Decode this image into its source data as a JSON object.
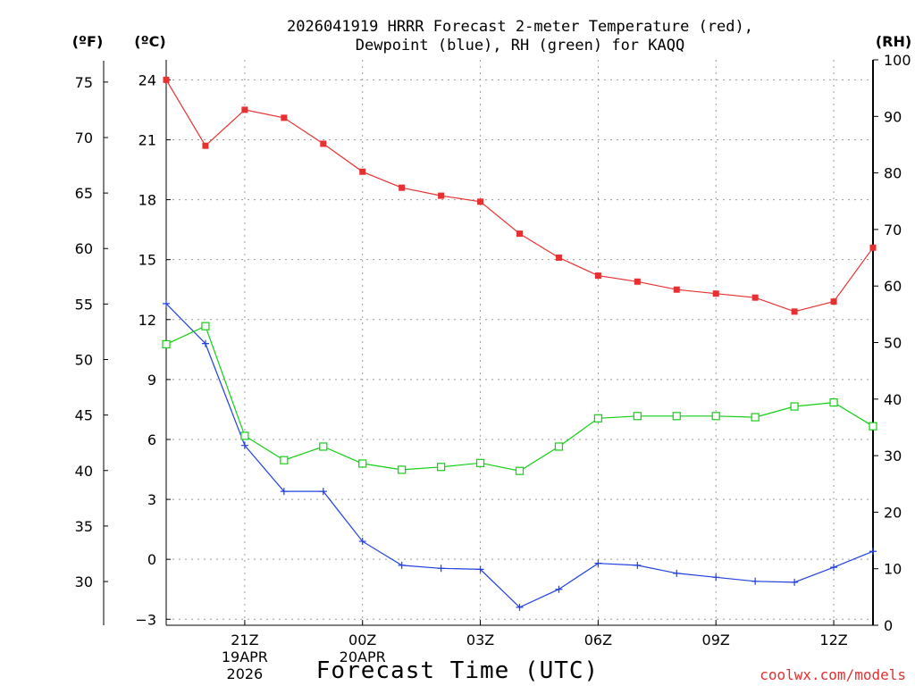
{
  "title_line1": "2026041919 HRRR Forecast 2-meter Temperature (red),",
  "title_line2": "Dewpoint (blue), RH (green) for KAQQ",
  "unit_f": "(ºF)",
  "unit_c": "(ºC)",
  "unit_rh": "(RH)",
  "xlabel": "Forecast Time (UTC)",
  "credit": "coolwx.com/models",
  "colors": {
    "temperature": "#e83030",
    "dewpoint": "#2040e0",
    "rh": "#10d010"
  },
  "chart_data": {
    "type": "line",
    "title": "2026041919 HRRR Forecast 2-meter Temperature (red), Dewpoint (blue), RH (green) for KAQQ",
    "xlabel": "Forecast Time (UTC)",
    "x_hours": [
      0,
      1,
      2,
      3,
      4,
      5,
      6,
      7,
      8,
      9,
      10,
      11,
      12,
      13,
      14,
      15,
      16,
      17,
      18
    ],
    "xlim": [
      0,
      18
    ],
    "x_ticks": [
      {
        "hour": 2,
        "label": "21Z",
        "sub1": "19APR",
        "sub2": "2026"
      },
      {
        "hour": 5,
        "label": "00Z",
        "sub1": "20APR",
        "sub2": ""
      },
      {
        "hour": 8,
        "label": "03Z",
        "sub1": "",
        "sub2": ""
      },
      {
        "hour": 11,
        "label": "06Z",
        "sub1": "",
        "sub2": ""
      },
      {
        "hour": 14,
        "label": "09Z",
        "sub1": "",
        "sub2": ""
      },
      {
        "hour": 17,
        "label": "12Z",
        "sub1": "",
        "sub2": ""
      }
    ],
    "axes": {
      "celsius": {
        "lim": [
          -3.3,
          25
        ],
        "ticks": [
          -3,
          0,
          3,
          6,
          9,
          12,
          15,
          18,
          21,
          24
        ],
        "tick_labels": [
          "−3",
          "0",
          "3",
          "6",
          "9",
          "12",
          "15",
          "18",
          "21",
          "24"
        ]
      },
      "fahrenheit": {
        "ticks": [
          30,
          35,
          40,
          45,
          50,
          55,
          60,
          65,
          70,
          75
        ],
        "tick_labels": [
          "30",
          "35",
          "40",
          "45",
          "50",
          "55",
          "60",
          "65",
          "70",
          "75"
        ]
      },
      "rh": {
        "lim": [
          0,
          100
        ],
        "ticks": [
          0,
          10,
          20,
          30,
          40,
          50,
          60,
          70,
          80,
          90,
          100
        ],
        "tick_labels": [
          "0",
          "10",
          "20",
          "30",
          "40",
          "50",
          "60",
          "70",
          "80",
          "90",
          "100"
        ]
      }
    },
    "series": [
      {
        "name": "Temperature (°C)",
        "color": "red",
        "marker": "filled-square",
        "values": [
          24.0,
          20.7,
          22.5,
          22.1,
          20.8,
          19.4,
          18.6,
          18.2,
          17.9,
          16.3,
          15.1,
          14.2,
          13.9,
          13.5,
          13.3,
          13.1,
          12.4,
          12.9,
          15.6
        ]
      },
      {
        "name": "Dewpoint (°C)",
        "color": "blue",
        "marker": "plus",
        "values": [
          12.8,
          10.8,
          5.7,
          3.4,
          3.4,
          0.9,
          -0.3,
          -0.45,
          -0.5,
          -2.4,
          -1.5,
          -0.2,
          -0.3,
          -0.7,
          -0.9,
          -1.1,
          -1.15,
          -0.4,
          0.4
        ]
      },
      {
        "name": "RH (%)",
        "color": "green",
        "marker": "open-square",
        "values": [
          49.7,
          52.9,
          33.5,
          29.2,
          31.6,
          28.6,
          27.5,
          28.0,
          28.7,
          27.3,
          31.6,
          36.6,
          37.0,
          37.0,
          37.0,
          36.8,
          38.7,
          39.4,
          35.2
        ]
      }
    ]
  }
}
